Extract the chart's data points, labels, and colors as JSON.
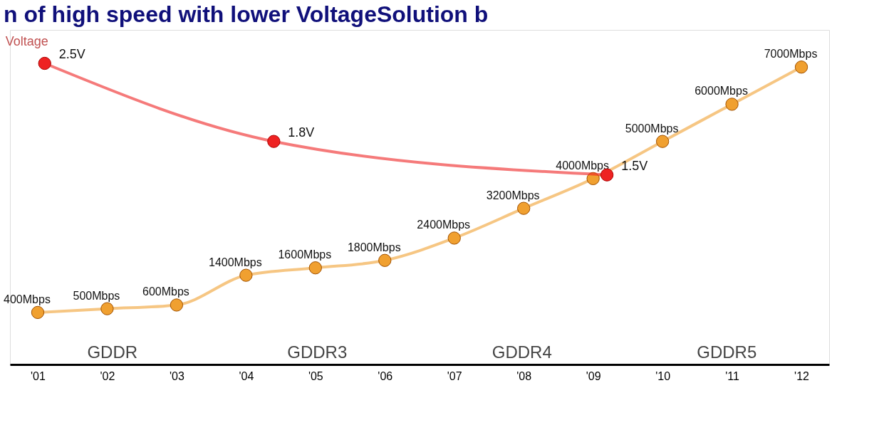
{
  "chart_data": {
    "type": "line",
    "title": "n of high speed with lower VoltageSolution b",
    "xlim": [
      2000.6,
      2012.4
    ],
    "xticks": [
      {
        "value": 2001,
        "label": "'01"
      },
      {
        "value": 2002,
        "label": "'02"
      },
      {
        "value": 2003,
        "label": "'03"
      },
      {
        "value": 2004,
        "label": "'04"
      },
      {
        "value": 2005,
        "label": "'05"
      },
      {
        "value": 2006,
        "label": "'06"
      },
      {
        "value": 2007,
        "label": "'07"
      },
      {
        "value": 2008,
        "label": "'08"
      },
      {
        "value": 2009,
        "label": "'09"
      },
      {
        "value": 2010,
        "label": "'10"
      },
      {
        "value": 2011,
        "label": "'11"
      },
      {
        "value": 2012,
        "label": "'12"
      }
    ],
    "marker": "circle",
    "series": [
      {
        "color": "#f0a030",
        "x": [
          2001,
          2002,
          2003,
          2004,
          2005,
          2006,
          2007,
          2008,
          2009,
          2010,
          2011,
          2012
        ],
        "values": [
          400,
          500,
          600,
          1400,
          1600,
          1800,
          2400,
          3200,
          4000,
          5000,
          6000,
          7000
        ],
        "value_labels": [
          "400Mbps",
          "500Mbps",
          "600Mbps",
          "1400Mbps",
          "1600Mbps",
          "1800Mbps",
          "2400Mbps",
          "3200Mbps",
          "4000Mbps",
          "5000Mbps",
          "6000Mbps",
          "7000Mbps"
        ]
      },
      {
        "name": "Voltage",
        "color": "#ee2222",
        "axis": "y2",
        "x": [
          2001.1,
          2004.4,
          2009.2
        ],
        "values": [
          2.5,
          1.8,
          1.5
        ],
        "value_labels": [
          "2.5V",
          "1.8V",
          "1.5V"
        ]
      }
    ],
    "annotations": [
      "GDDR",
      "GDDR3",
      "GDDR4",
      "GDDR5"
    ]
  }
}
